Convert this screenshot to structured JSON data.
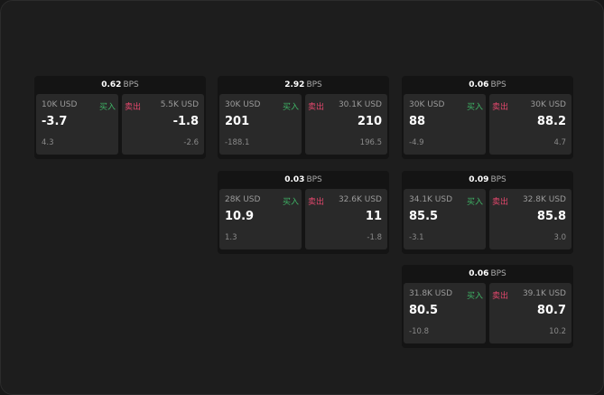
{
  "colors": {
    "buy": "#3fb466",
    "sell": "#e2476c",
    "background": "#1d1d1d",
    "panel": "#141414",
    "card": "#292929"
  },
  "panels": [
    {
      "bps": "0.62",
      "unit": "BPS",
      "buy": {
        "amount": "10K USD",
        "label": "买入",
        "price": "-3.7",
        "change": "4.3"
      },
      "sell": {
        "amount": "5.5K USD",
        "label": "卖出",
        "price": "-1.8",
        "change": "-2.6"
      }
    },
    {
      "bps": "2.92",
      "unit": "BPS",
      "buy": {
        "amount": "30K USD",
        "label": "买入",
        "price": "201",
        "change": "-188.1"
      },
      "sell": {
        "amount": "30.1K USD",
        "label": "卖出",
        "price": "210",
        "change": "196.5"
      }
    },
    {
      "bps": "0.06",
      "unit": "BPS",
      "buy": {
        "amount": "30K USD",
        "label": "买入",
        "price": "88",
        "change": "-4.9"
      },
      "sell": {
        "amount": "30K USD",
        "label": "卖出",
        "price": "88.2",
        "change": "4.7"
      }
    },
    {
      "bps": "0.03",
      "unit": "BPS",
      "buy": {
        "amount": "28K USD",
        "label": "买入",
        "price": "10.9",
        "change": "1.3"
      },
      "sell": {
        "amount": "32.6K USD",
        "label": "卖出",
        "price": "11",
        "change": "-1.8"
      }
    },
    {
      "bps": "0.09",
      "unit": "BPS",
      "buy": {
        "amount": "34.1K USD",
        "label": "买入",
        "price": "85.5",
        "change": "-3.1"
      },
      "sell": {
        "amount": "32.8K USD",
        "label": "卖出",
        "price": "85.8",
        "change": "3.0"
      }
    },
    {
      "bps": "0.06",
      "unit": "BPS",
      "buy": {
        "amount": "31.8K USD",
        "label": "买入",
        "price": "80.5",
        "change": "-10.8"
      },
      "sell": {
        "amount": "39.1K USD",
        "label": "卖出",
        "price": "80.7",
        "change": "10.2"
      }
    }
  ]
}
